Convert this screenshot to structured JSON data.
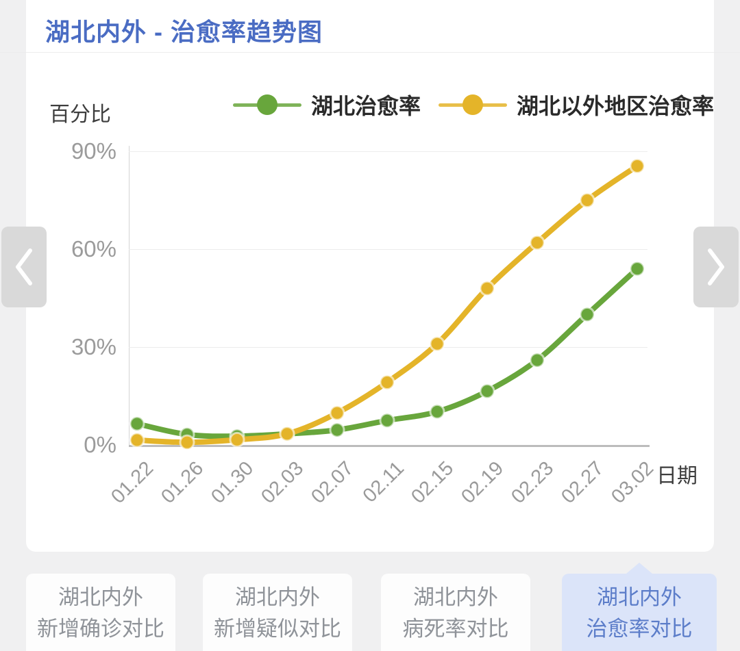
{
  "header": {
    "title": "湖北内外 - 治愈率趋势图"
  },
  "colors": {
    "title_blue": "#4a6cc3",
    "hubei_green": "#68a63c",
    "outside_yellow": "#e4b429",
    "selected_tab_bg": "#dbe4f9",
    "selected_tab_text": "#5c7dc9",
    "axis_text": "#9a9a9a"
  },
  "icons": {
    "prev": "chevron-left-icon",
    "next": "chevron-right-icon"
  },
  "chart_data": {
    "type": "line",
    "title": "湖北内外 - 治愈率趋势图",
    "ylabel": "百分比",
    "xlabel": "日期",
    "categories": [
      "01.22",
      "01.26",
      "01.30",
      "02.03",
      "02.07",
      "02.11",
      "02.15",
      "02.19",
      "02.23",
      "02.27",
      "03.02"
    ],
    "series": [
      {
        "name": "湖北治愈率",
        "color": "#68a63c",
        "values": [
          6.5,
          3.2,
          2.7,
          3.4,
          4.6,
          7.5,
          10.2,
          16.5,
          26.0,
          40.0,
          54.0
        ]
      },
      {
        "name": "湖北以外地区治愈率",
        "color": "#e4b429",
        "values": [
          1.5,
          0.8,
          1.6,
          3.4,
          9.8,
          19.2,
          31.0,
          48.0,
          62.0,
          75.0,
          85.5
        ]
      }
    ],
    "ylim": [
      0,
      90
    ],
    "yticks": [
      {
        "label": "0%",
        "value": 0
      },
      {
        "label": "30%",
        "value": 30
      },
      {
        "label": "60%",
        "value": 60
      },
      {
        "label": "90%",
        "value": 90
      }
    ],
    "grid": true,
    "legend_position": "top"
  },
  "tabs": [
    {
      "line1": "湖北内外",
      "line2": "新增确诊对比",
      "selected": false
    },
    {
      "line1": "湖北内外",
      "line2": "新增疑似对比",
      "selected": false
    },
    {
      "line1": "湖北内外",
      "line2": "病死率对比",
      "selected": false
    },
    {
      "line1": "湖北内外",
      "line2": "治愈率对比",
      "selected": true
    }
  ]
}
